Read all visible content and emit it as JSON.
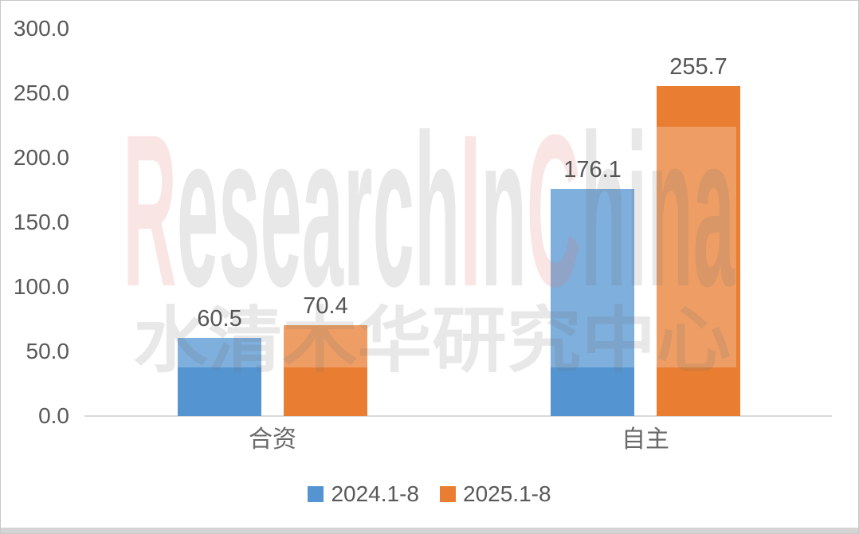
{
  "chart_data": {
    "type": "bar",
    "title": "",
    "categories": [
      "合资",
      "自主"
    ],
    "series": [
      {
        "name": "2024.1-8",
        "color": "#5494D1",
        "values": [
          60.5,
          176.1
        ],
        "labels": [
          "60.5",
          "176.1"
        ]
      },
      {
        "name": "2025.1-8",
        "color": "#E97E32",
        "values": [
          70.4,
          255.7
        ],
        "labels": [
          "70.4",
          "255.7"
        ]
      }
    ],
    "y_axis": {
      "min": 0.0,
      "max": 300.0,
      "step": 50.0,
      "tick_labels": [
        "300.0",
        "250.0",
        "200.0",
        "150.0",
        "100.0",
        "50.0",
        "0.0"
      ]
    },
    "grid": false,
    "legend_position": "bottom"
  },
  "watermark": {
    "english_text": "ResearchInChina",
    "letters": [
      {
        "ch": "R",
        "color": "pink"
      },
      {
        "ch": "e",
        "color": "gray"
      },
      {
        "ch": "s",
        "color": "gray"
      },
      {
        "ch": "e",
        "color": "gray"
      },
      {
        "ch": "a",
        "color": "gray"
      },
      {
        "ch": "r",
        "color": "gray"
      },
      {
        "ch": "c",
        "color": "gray"
      },
      {
        "ch": "h",
        "color": "gray"
      },
      {
        "ch": "I",
        "color": "pink"
      },
      {
        "ch": "n",
        "color": "gray"
      },
      {
        "ch": "C",
        "color": "pink"
      },
      {
        "ch": "h",
        "color": "gray"
      },
      {
        "ch": "i",
        "color": "gray"
      },
      {
        "ch": "n",
        "color": "gray"
      },
      {
        "ch": "a",
        "color": "gray"
      }
    ],
    "chinese_text": "水清木华研究中心",
    "palette": {
      "pink": "rgba(224,116,106,0.18)",
      "gray": "rgba(112,112,112,0.16)",
      "band": "rgba(255,255,255,0.25)"
    }
  },
  "colors": {
    "axis_line": "#D9D9D9",
    "tick_text": "#595959",
    "value_text": "#555555",
    "category_text": "#696969",
    "legend_text": "#595959",
    "border": "#C8C8C8",
    "bottom_strip": "#D4D4D4",
    "background": "#FFFFFF"
  }
}
